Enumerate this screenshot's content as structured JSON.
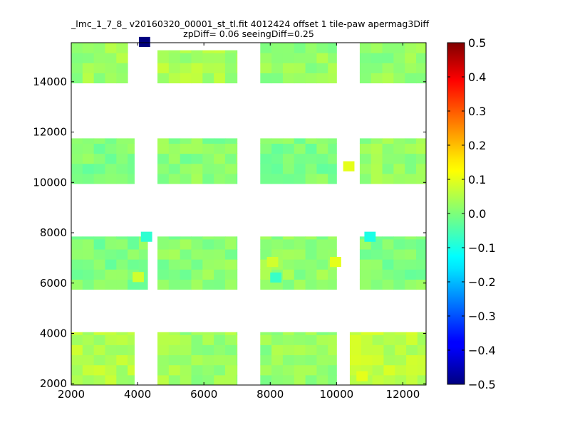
{
  "chart_data": {
    "type": "heatmap",
    "title": "_lmc_1_7_8_ v20160320_00001_st_tl.fit 4012424 offset 1 tile-paw apermag3Diff",
    "subtitle": "zpDiff= 0.06 seeingDiff=0.25",
    "xlabel": "",
    "ylabel": "",
    "xlim": [
      2000,
      12700
    ],
    "ylim": [
      1950,
      15550
    ],
    "x_ticks": [
      2000,
      4000,
      6000,
      8000,
      10000,
      12000
    ],
    "y_ticks": [
      2000,
      4000,
      6000,
      8000,
      10000,
      12000,
      14000
    ],
    "colorbar": {
      "range": [
        -0.5,
        0.5
      ],
      "ticks": [
        "0.5",
        "0.4",
        "0.3",
        "0.2",
        "0.1",
        "0.0",
        "−0.1",
        "−0.2",
        "−0.3",
        "−0.4",
        "−0.5"
      ],
      "colormap": "jet"
    },
    "cell_size": [
      340,
      400
    ],
    "blocks": [
      {
        "name": "col1-row4",
        "x": [
          2000,
          3700
        ],
        "y": [
          13950,
          15550
        ],
        "base": 0.03
      },
      {
        "name": "col2-row4",
        "x": [
          4600,
          7000
        ],
        "y": [
          13950,
          15250
        ],
        "base": 0.04
      },
      {
        "name": "col3-row4",
        "x": [
          7700,
          10000
        ],
        "y": [
          13950,
          15550
        ],
        "base": 0.02
      },
      {
        "name": "col4-row4",
        "x": [
          10700,
          12700
        ],
        "y": [
          13950,
          15550
        ],
        "base": 0.02
      },
      {
        "name": "col1-row3",
        "x": [
          2000,
          3900
        ],
        "y": [
          9950,
          11750
        ],
        "base": 0.0
      },
      {
        "name": "col2-row3",
        "x": [
          4600,
          7000
        ],
        "y": [
          9950,
          11750
        ],
        "base": 0.01
      },
      {
        "name": "col3-row3",
        "x": [
          7700,
          10000
        ],
        "y": [
          9950,
          11750
        ],
        "base": 0.0
      },
      {
        "name": "col4-row3",
        "x": [
          10700,
          12700
        ],
        "y": [
          9950,
          11750
        ],
        "base": 0.02
      },
      {
        "name": "col1-row2",
        "x": [
          2000,
          4300
        ],
        "y": [
          5750,
          7850
        ],
        "base": 0.0
      },
      {
        "name": "col2-row2",
        "x": [
          4600,
          7000
        ],
        "y": [
          5750,
          7850
        ],
        "base": 0.01
      },
      {
        "name": "col3-row2",
        "x": [
          7700,
          10000
        ],
        "y": [
          5750,
          7850
        ],
        "base": 0.02
      },
      {
        "name": "col4-row2",
        "x": [
          10700,
          12700
        ],
        "y": [
          5750,
          7850
        ],
        "base": 0.0
      },
      {
        "name": "col1-row1",
        "x": [
          2000,
          3900
        ],
        "y": [
          1950,
          4050
        ],
        "base": 0.05
      },
      {
        "name": "col2-row1",
        "x": [
          4600,
          7000
        ],
        "y": [
          1950,
          4050
        ],
        "base": 0.03
      },
      {
        "name": "col3-row1",
        "x": [
          7700,
          10000
        ],
        "y": [
          1950,
          4050
        ],
        "base": 0.02
      },
      {
        "name": "col4-row1",
        "x": [
          10400,
          12700
        ],
        "y": [
          1950,
          4050
        ],
        "base": 0.06
      }
    ],
    "highlight_cells": [
      {
        "x": 4040,
        "y": 15380,
        "value": -0.5
      },
      {
        "x": 10840,
        "y": 7640,
        "value": -0.1
      },
      {
        "x": 8000,
        "y": 6020,
        "value": -0.07
      },
      {
        "x": 10200,
        "y": 10440,
        "value": 0.1
      },
      {
        "x": 9800,
        "y": 6640,
        "value": 0.1
      },
      {
        "x": 7900,
        "y": 6640,
        "value": 0.08
      },
      {
        "x": 10600,
        "y": 2100,
        "value": 0.1
      },
      {
        "x": 3850,
        "y": 6040,
        "value": 0.08
      },
      {
        "x": 4100,
        "y": 7640,
        "value": -0.08
      }
    ]
  }
}
